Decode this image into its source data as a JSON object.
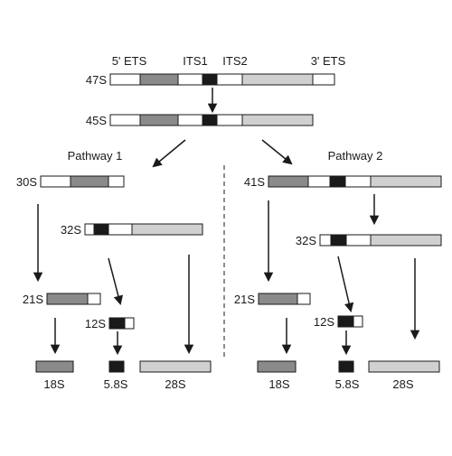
{
  "colors": {
    "ets5": "#8a8a8a",
    "its1": "#1a1a1a",
    "its2_28s": "#d0d0d0",
    "spacer": "#ffffff",
    "stroke": "#1a1a1a"
  },
  "header_labels": {
    "ets5": "5' ETS",
    "its1": "ITS1",
    "its2": "ITS2",
    "ets3": "3' ETS"
  },
  "pathways": {
    "p1": "Pathway 1",
    "p2": "Pathway 2"
  },
  "precursors": {
    "s47": "47S",
    "s45": "45S",
    "s30": "30S",
    "s32": "32S",
    "s21_left": "21S",
    "s12_left": "12S",
    "s41": "41S",
    "s32_right": "32S",
    "s21_right": "21S",
    "s12_right": "12S"
  },
  "products": {
    "s18_left": "18S",
    "s58_left": "5.8S",
    "s28_left": "28S",
    "s18_right": "18S",
    "s58_right": "5.8S",
    "s28_right": "28S"
  }
}
